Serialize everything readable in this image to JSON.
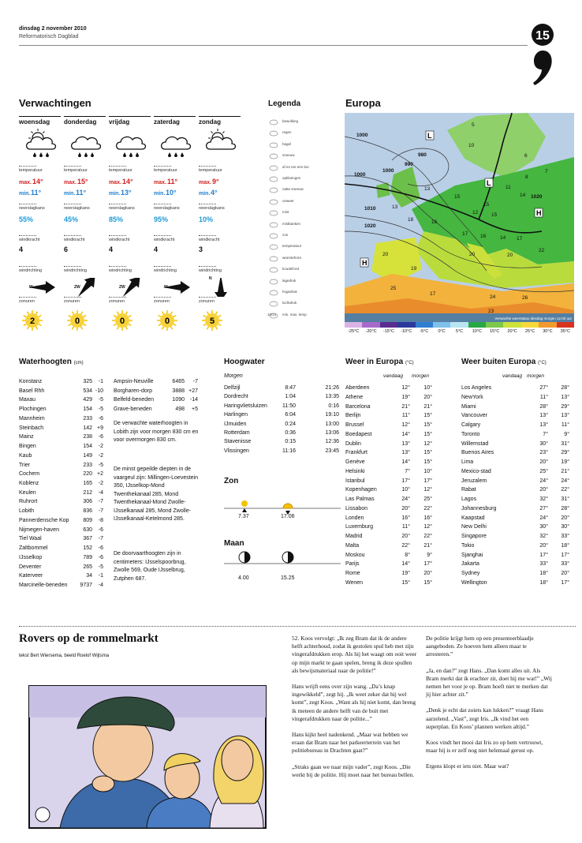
{
  "header": {
    "date": "dinsdag 2 november 2010",
    "paper": "Reformatorisch Dagblad",
    "page": "15"
  },
  "forecast": {
    "title": "Verwachtingen",
    "labels": {
      "temperature": "temperatuur",
      "max": "max.",
      "min": "min.",
      "precipitation": "neerslagkans",
      "wind_force": "windkracht",
      "wind_direction": "windrichting",
      "sun_hours": "zonuren"
    },
    "days": [
      {
        "name": "woensdag",
        "max": "14°",
        "min": "11°",
        "precipitation": "55%",
        "wind_force": "4",
        "wind_direction": "W",
        "sun_hours": "2"
      },
      {
        "name": "donderdag",
        "max": "15°",
        "min": "11°",
        "precipitation": "45%",
        "wind_force": "6",
        "wind_direction": "ZW",
        "sun_hours": "0"
      },
      {
        "name": "vrijdag",
        "max": "14°",
        "min": "13°",
        "precipitation": "85%",
        "wind_force": "4",
        "wind_direction": "ZW",
        "sun_hours": "0"
      },
      {
        "name": "zaterdag",
        "max": "11°",
        "min": "10°",
        "precipitation": "95%",
        "wind_force": "4",
        "wind_direction": "W",
        "sun_hours": "0"
      },
      {
        "name": "zondag",
        "max": "9°",
        "min": "4°",
        "precipitation": "10%",
        "wind_force": "3",
        "wind_direction": "N",
        "sun_hours": "5"
      }
    ]
  },
  "legend": {
    "title": "Legenda",
    "items": [
      "bewolking",
      "regen",
      "hagel",
      "sneeuw",
      "af en toe een bui",
      "opklaringen",
      "natte sneeuw",
      "onweer",
      "mist",
      "mistbanken",
      "zon",
      "temperatuur",
      "warmtefront",
      "koudefront",
      "lagedruk",
      "hogedruk",
      "luchtdruk",
      "min. max. temp"
    ],
    "sample": "18/14"
  },
  "map": {
    "title": "Europa",
    "caption": "Verwachte weerstatus dinsdag morgen 12.00 uur",
    "isobars": [
      "1000",
      "990",
      "980",
      "1000",
      "1000",
      "1010",
      "1020",
      "1020"
    ],
    "pressure": [
      "L",
      "L",
      "H",
      "H"
    ],
    "temps": [
      "5",
      "10",
      "6",
      "7",
      "8",
      "13",
      "16",
      "18",
      "15",
      "15",
      "11",
      "14",
      "12",
      "15",
      "17",
      "16",
      "14",
      "17",
      "22",
      "20",
      "20",
      "20",
      "19",
      "25",
      "17",
      "24",
      "23",
      "26",
      "13"
    ],
    "scale": [
      {
        "label": "-25°C",
        "color": "#d9b3e6"
      },
      {
        "label": "-20°C",
        "color": "#a66bc9"
      },
      {
        "label": "-15°C",
        "color": "#5a2d91"
      },
      {
        "label": "-10°C",
        "color": "#2b3a9c"
      },
      {
        "label": "-5°C",
        "color": "#2f7fd1"
      },
      {
        "label": "0°C",
        "color": "#7fc1ec"
      },
      {
        "label": "5°C",
        "color": "#b9e4f2"
      },
      {
        "label": "10°C",
        "color": "#27a844"
      },
      {
        "label": "15°C",
        "color": "#7cc84a"
      },
      {
        "label": "20°C",
        "color": "#cde23b"
      },
      {
        "label": "25°C",
        "color": "#f7d83a"
      },
      {
        "label": "30°C",
        "color": "#f29a2e"
      },
      {
        "label": "35°C",
        "color": "#d8331f"
      }
    ]
  },
  "water": {
    "title": "Waterhoogten",
    "unit": "(cm)",
    "rows": [
      [
        "Konstanz",
        "325",
        "-1"
      ],
      [
        "Basel Rhh",
        "534",
        "-10"
      ],
      [
        "Maxau",
        "429",
        "-5"
      ],
      [
        "Plochingen",
        "154",
        "-5"
      ],
      [
        "Mannheim",
        "233",
        "-6"
      ],
      [
        "Steinbach",
        "142",
        "+9"
      ],
      [
        "Mainz",
        "238",
        "-6"
      ],
      [
        "Bingen",
        "154",
        "-2"
      ],
      [
        "Kaub",
        "149",
        "-2"
      ],
      [
        "Trier",
        "233",
        "-5"
      ],
      [
        "Cochem",
        "220",
        "+2"
      ],
      [
        "Koblenz",
        "165",
        "-2"
      ],
      [
        "Keulen",
        "212",
        "-4"
      ],
      [
        "Ruhrort",
        "306",
        "-7"
      ],
      [
        "Lobith",
        "836",
        "-7"
      ],
      [
        "Pannerdensche Kop",
        "809",
        "-8"
      ],
      [
        "Nijmegen-haven",
        "630",
        "-6"
      ],
      [
        "Tiel Waal",
        "367",
        "-7"
      ],
      [
        "Zaltbommel",
        "152",
        "-6"
      ],
      [
        "IJsselkop",
        "789",
        "-6"
      ],
      [
        "Deventer",
        "265",
        "-5"
      ],
      [
        "Katerveer",
        "34",
        "-1"
      ],
      [
        "Marcinelle-beneden",
        "9737",
        "-4"
      ]
    ],
    "rows2": [
      [
        "Ampsin-Neuville",
        "6465",
        "-7"
      ],
      [
        "Borgharen-dorp",
        "3888",
        "+27"
      ],
      [
        "Belfeld-beneden",
        "1090",
        "-14"
      ],
      [
        "Grave-beneden",
        "498",
        "+5"
      ]
    ],
    "notes": [
      "De verwachte waterhoogten in Lobith zijn voor morgen 830 cm en voor overmorgen 830 cm.",
      "De minst gepeilde diepten in de vaargeul zijn: Millingen-Loevestein 350, IJsselkop-Mond Twenthekanaal 285, Mond Twenthekanaal-Mond Zwolle-IJsselkanaal 285, Mond Zwolle-IJsselkanaal-Ketelmond 285.",
      "De doorvaarthoogten zijn in centimeters: IJsselspoorbrug, Zwolle 569, Oude IJsselbrug, Zutphen 687."
    ]
  },
  "tide": {
    "title": "Hoogwater",
    "day": "Morgen",
    "rows": [
      [
        "Delfzijl",
        "8:47",
        "21:26"
      ],
      [
        "Dordrecht",
        "1:04",
        "13:35"
      ],
      [
        "Haringvlietsluizen",
        "11:50",
        "0:16"
      ],
      [
        "Harlingen",
        "6:04",
        "19:10"
      ],
      [
        "IJmuiden",
        "0:24",
        "13:00"
      ],
      [
        "Rotterdam",
        "0:36",
        "13:06"
      ],
      [
        "Stavenisse",
        "0:15",
        "12:36"
      ],
      [
        "Vlissingen",
        "11:16",
        "23:45"
      ]
    ]
  },
  "sun": {
    "title": "Zon",
    "rise": "7.37",
    "set": "17.06"
  },
  "moon": {
    "title": "Maan",
    "rise": "4.00",
    "set": "15.25"
  },
  "europe": {
    "title": "Weer in Europa",
    "unit": "(°C)",
    "columns": [
      "vandaag",
      "morgen"
    ],
    "rows": [
      [
        "Aberdeen",
        "12°",
        "10°"
      ],
      [
        "Athene",
        "19°",
        "20°"
      ],
      [
        "Barcelona",
        "21°",
        "21°"
      ],
      [
        "Berlijn",
        "11°",
        "15°"
      ],
      [
        "Brussel",
        "12°",
        "15°"
      ],
      [
        "Boedapest",
        "14°",
        "15°"
      ],
      [
        "Dublin",
        "13°",
        "12°"
      ],
      [
        "Frankfurt",
        "13°",
        "15°"
      ],
      [
        "Genève",
        "14°",
        "15°"
      ],
      [
        "Helsinki",
        "7°",
        "10°"
      ],
      [
        "Istanbul",
        "17°",
        "17°"
      ],
      [
        "Kopenhagen",
        "10°",
        "12°"
      ],
      [
        "Las Palmas",
        "24°",
        "25°"
      ],
      [
        "Lissabon",
        "20°",
        "22°"
      ],
      [
        "Londen",
        "16°",
        "16°"
      ],
      [
        "Luxemburg",
        "11°",
        "12°"
      ],
      [
        "Madrid",
        "20°",
        "22°"
      ],
      [
        "Malta",
        "22°",
        "21°"
      ],
      [
        "Moskou",
        "8°",
        "9°"
      ],
      [
        "Parijs",
        "14°",
        "17°"
      ],
      [
        "Rome",
        "19°",
        "20°"
      ],
      [
        "Wenen",
        "15°",
        "15°"
      ]
    ]
  },
  "world": {
    "title": "Weer buiten Europa",
    "unit": "(°C)",
    "columns": [
      "vandaag",
      "morgen"
    ],
    "rows": [
      [
        "Los Angeles",
        "27°",
        "28°"
      ],
      [
        "NewYork",
        "11°",
        "13°"
      ],
      [
        "Miami",
        "28°",
        "29°"
      ],
      [
        "Vancouver",
        "13°",
        "13°"
      ],
      [
        "Calgary",
        "13°",
        "11°"
      ],
      [
        "Toronto",
        "7°",
        "9°"
      ],
      [
        "Willemstad",
        "30°",
        "31°"
      ],
      [
        "Buenos Aires",
        "23°",
        "29°"
      ],
      [
        "Lima",
        "20°",
        "19°"
      ],
      [
        "Mexico-stad",
        "25°",
        "21°"
      ],
      [
        "Jeruzalem",
        "24°",
        "24°"
      ],
      [
        "Rabat",
        "20°",
        "22°"
      ],
      [
        "Lagos",
        "32°",
        "31°"
      ],
      [
        "Johannesburg",
        "27°",
        "28°"
      ],
      [
        "Kaapstad",
        "24°",
        "20°"
      ],
      [
        "New Delhi",
        "30°",
        "30°"
      ],
      [
        "Singapore",
        "32°",
        "33°"
      ],
      [
        "Tokio",
        "20°",
        "18°"
      ],
      [
        "Sjanghai",
        "17°",
        "17°"
      ],
      [
        "Jakarta",
        "33°",
        "33°"
      ],
      [
        "Sydney",
        "18°",
        "20°"
      ],
      [
        "Wellington",
        "18°",
        "17°"
      ]
    ]
  },
  "comic": {
    "title": "Rovers op de rommelmarkt",
    "credit": "tekst Bert Wiersema, beeld Roelof Wijtsma",
    "column1": [
      "52. Koos vervolgt: „Ik zeg Bram dat ik de andere helft achterhoud, zodat ik gestolen spul heb met zijn vingerafdrukken erop. Als hij het waagt om ooit weer op mijn markt te gaan spelen, breng ik deze spullen als bewijsmateriaal naar de politie!”",
      "Hans wrijft eens over zijn wang. „Da’s knap ingewikkeld”, zegt hij. „Ik weet zeker dat hij wel komt”, zegt Koos. „Want als hij niet komt, dan breng ik meteen de andere helft van de buit met vingerafdrukken naar de politie...”",
      "Hans kijkt heel nadenkend. „Maar wat hebben we eraan dat Bram naar het parkeerterrein van het politiebureau in Drachten gaat?”",
      "„Straks gaan we naar mijn vader”, zegt Koos. „Die werkt bij de politie. Hij moet naar het bureau bellen."
    ],
    "column2": [
      "De politie krijgt hem op een presenteerblaadje aangeboden. Ze hoeven hem alleen maar te arresteren.”",
      "„Ja, en dan?” zegt Hans. „Dan komt alles uit. Als Bram merkt dat ik erachter zit, doet hij me wat!” „Wij nemen het voor je op. Bram hoeft niet te merken dat jij hier achter zit.”",
      "„Denk je echt dat zoiets kan lukken?” vraagt Hans aarzelend. „Vast”, zegt Iris. „Ik vind het een superplan. En Koos’ plannen werken altijd.”",
      "Koos vindt het mooi dat Iris zo op hem vertrouwt, maar hij is er zelf nog niet helemaal gerust op.",
      "Ergens klopt er iets niet. Maar wat?"
    ]
  }
}
